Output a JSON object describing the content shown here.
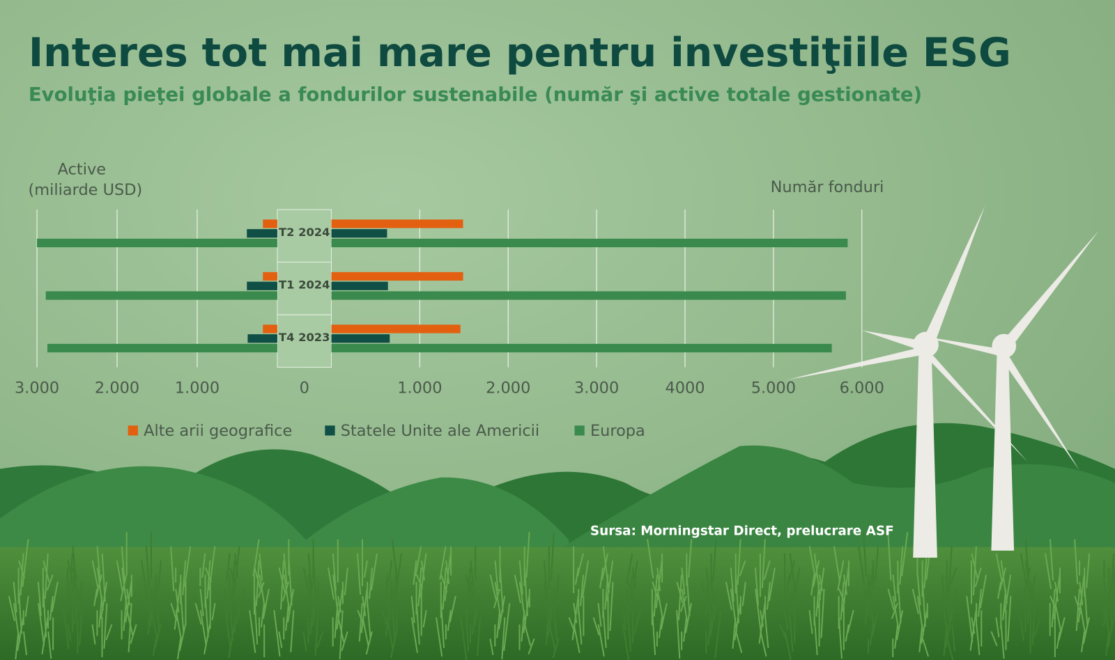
{
  "chart_data": {
    "type": "butterfly",
    "title": "Interes tot mai mare pentru investiţiile ESG",
    "subtitle": "Evoluţia pieţei globale a fondurilor sustenabile (număr şi active totale gestionate)",
    "left_axis_label": [
      "Active",
      "(miliarde USD)"
    ],
    "right_axis_label": "Număr fonduri",
    "categories": [
      "T2 2024",
      "T1 2024",
      "T4 2023"
    ],
    "left": {
      "xlim": [
        0,
        3000
      ],
      "xticks": [
        {
          "value": 3000,
          "label": "3.000"
        },
        {
          "value": 2000,
          "label": "2.000"
        },
        {
          "value": 1000,
          "label": "1.000"
        },
        0
      ]
    },
    "right": {
      "xlim": [
        0,
        6000
      ],
      "xticks": [
        {
          "value": 1000,
          "label": "1.000"
        },
        {
          "value": 2000,
          "label": "2.000"
        },
        {
          "value": 3000,
          "label": "3.000"
        },
        4000,
        {
          "value": 5000,
          "label": "5.000"
        },
        {
          "value": 6000,
          "label": "6.000"
        }
      ]
    },
    "grid": true,
    "series": [
      {
        "name": "Alte arii geografice",
        "color": "#e2600f",
        "assets": [
          180,
          180,
          180
        ],
        "funds": [
          1490,
          1490,
          1460
        ]
      },
      {
        "name": "Statele Unite ale Americii",
        "color": "#0f4f45",
        "assets": [
          380,
          380,
          370
        ],
        "funds": [
          630,
          640,
          660
        ]
      },
      {
        "name": "Europa",
        "color": "#3a8a4d",
        "assets": [
          3000,
          2890,
          2870
        ],
        "funds": [
          5840,
          5820,
          5660
        ]
      }
    ],
    "source": "Sursa: Morningstar Direct, prelucrare ASF"
  }
}
